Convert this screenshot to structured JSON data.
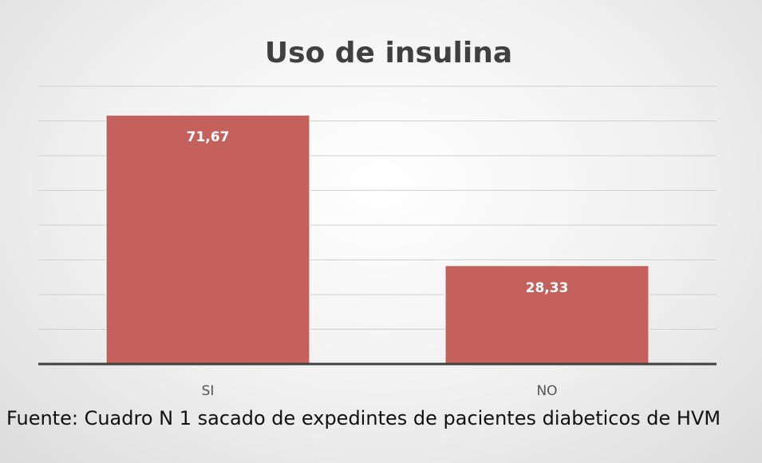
{
  "chart_data": {
    "type": "bar",
    "title": "Uso de insulina",
    "categories": [
      "SI",
      "NO"
    ],
    "values": [
      71.67,
      28.33
    ],
    "value_labels": [
      "71,67",
      "28,33"
    ],
    "color": "#c5615d",
    "ylim": [
      0,
      80
    ],
    "yticks": [
      0,
      10,
      20,
      30,
      40,
      50,
      60,
      70,
      80
    ],
    "grid": true,
    "source": "Fuente: Cuadro N 1 sacado de expedintes de pacientes diabeticos de HVM"
  }
}
